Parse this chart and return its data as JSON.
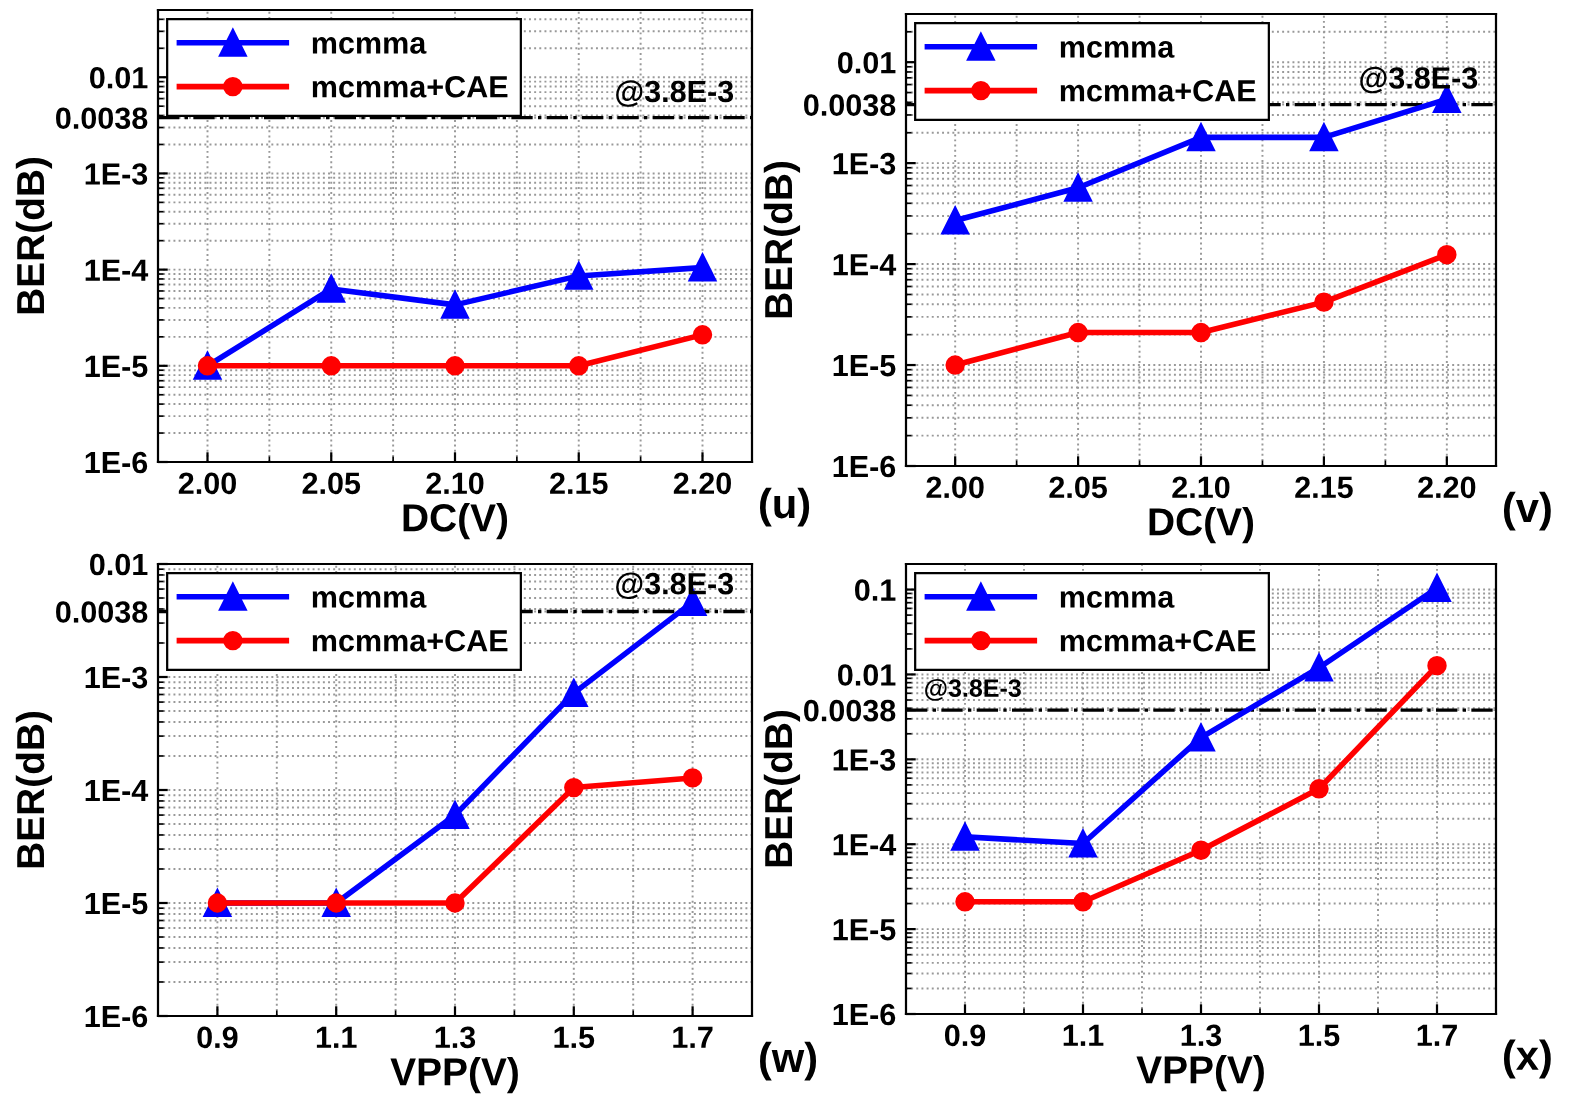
{
  "chart_data": [
    {
      "type": "line",
      "xlabel": "DC(V)",
      "ylabel": "BER(dB)",
      "x": [
        2.0,
        2.05,
        2.1,
        2.15,
        2.2
      ],
      "log": "y",
      "xlim": [
        1.98,
        2.22
      ],
      "xticks": [
        {
          "value": 2.0,
          "label": "2.00"
        },
        {
          "value": 2.05,
          "label": "2.05"
        },
        {
          "value": 2.1,
          "label": "2.10"
        },
        {
          "value": 2.15,
          "label": "2.15"
        },
        {
          "value": 2.2,
          "label": "2.20"
        }
      ],
      "ylim": [
        1e-06,
        0.05
      ],
      "yticks": [
        {
          "value": 1e-06,
          "label": "1E-6"
        },
        {
          "value": 1e-05,
          "label": "1E-5"
        },
        {
          "value": 0.0001,
          "label": "1E-4"
        },
        {
          "value": 0.001,
          "label": "1E-3"
        },
        0.0038,
        0.01
      ],
      "grid": true,
      "legend": "top left",
      "series": [
        {
          "name": "mcmma",
          "color": "#0000ff",
          "marker": "triangle",
          "values": [
            1e-05,
            6.3e-05,
            4.3e-05,
            8.6e-05,
            0.000105
          ]
        },
        {
          "name": "mcmma+CAE",
          "color": "#ff0000",
          "marker": "circle",
          "values": [
            1e-05,
            1e-05,
            1e-05,
            1e-05,
            2.1e-05
          ]
        }
      ],
      "ref_lines": [
        {
          "axis": "y",
          "value": 0.0038,
          "label": "@3.8E-3",
          "color": "#000000",
          "line_style": "dashdot"
        }
      ],
      "annotations": [
        "(u)"
      ]
    },
    {
      "type": "line",
      "xlabel": "DC(V)",
      "ylabel": "BER(dB)",
      "x": [
        2.0,
        2.05,
        2.1,
        2.15,
        2.2
      ],
      "log": "y",
      "xlim": [
        1.98,
        2.22
      ],
      "xticks": [
        {
          "value": 2.0,
          "label": "2.00"
        },
        {
          "value": 2.05,
          "label": "2.05"
        },
        {
          "value": 2.1,
          "label": "2.10"
        },
        {
          "value": 2.15,
          "label": "2.15"
        },
        {
          "value": 2.2,
          "label": "2.20"
        }
      ],
      "ylim": [
        1e-06,
        0.03
      ],
      "yticks": [
        {
          "value": 1e-06,
          "label": "1E-6"
        },
        {
          "value": 1e-05,
          "label": "1E-5"
        },
        {
          "value": 0.0001,
          "label": "1E-4"
        },
        {
          "value": 0.001,
          "label": "1E-3"
        },
        0.0038,
        0.01
      ],
      "grid": true,
      "legend": "top left",
      "series": [
        {
          "name": "mcmma",
          "color": "#0000ff",
          "marker": "triangle",
          "values": [
            0.00027,
            0.00057,
            0.0018,
            0.0018,
            0.0043
          ]
        },
        {
          "name": "mcmma+CAE",
          "color": "#ff0000",
          "marker": "circle",
          "values": [
            1e-05,
            2.1e-05,
            2.1e-05,
            4.2e-05,
            0.000124
          ]
        }
      ],
      "ref_lines": [
        {
          "axis": "y",
          "value": 0.0038,
          "label": "@3.8E-3",
          "color": "#000000",
          "line_style": "dashdot"
        }
      ],
      "annotations": [
        "(v)"
      ]
    },
    {
      "type": "line",
      "xlabel": "VPP(V)",
      "ylabel": "BER(dB)",
      "x": [
        0.9,
        1.1,
        1.3,
        1.5,
        1.7
      ],
      "log": "y",
      "xlim": [
        0.8,
        1.8
      ],
      "xticks": [
        0.9,
        1.1,
        1.3,
        1.5,
        1.7
      ],
      "ylim": [
        1e-06,
        0.01
      ],
      "yticks": [
        {
          "value": 1e-06,
          "label": "1E-6"
        },
        {
          "value": 1e-05,
          "label": "1E-5"
        },
        {
          "value": 0.0001,
          "label": "1E-4"
        },
        {
          "value": 0.001,
          "label": "1E-3"
        },
        0.0038,
        0.01
      ],
      "grid": true,
      "legend": "top left",
      "series": [
        {
          "name": "mcmma",
          "color": "#0000ff",
          "marker": "triangle",
          "values": [
            1e-05,
            1e-05,
            6e-05,
            0.00072,
            0.0046
          ]
        },
        {
          "name": "mcmma+CAE",
          "color": "#ff0000",
          "marker": "circle",
          "values": [
            1e-05,
            1e-05,
            1e-05,
            0.000105,
            0.000128
          ]
        }
      ],
      "ref_lines": [
        {
          "axis": "y",
          "value": 0.0038,
          "label": "@3.8E-3",
          "color": "#000000",
          "line_style": "dashdot"
        }
      ],
      "annotations": [
        "(w)"
      ]
    },
    {
      "type": "line",
      "xlabel": "VPP(V)",
      "ylabel": "BER(dB)",
      "x": [
        0.9,
        1.1,
        1.3,
        1.5,
        1.7
      ],
      "log": "y",
      "xlim": [
        0.8,
        1.8
      ],
      "xticks": [
        0.9,
        1.1,
        1.3,
        1.5,
        1.7
      ],
      "ylim": [
        1e-06,
        0.2
      ],
      "yticks": [
        {
          "value": 1e-06,
          "label": "1E-6"
        },
        {
          "value": 1e-05,
          "label": "1E-5"
        },
        {
          "value": 0.0001,
          "label": "1E-4"
        },
        {
          "value": 0.001,
          "label": "1E-3"
        },
        0.0038,
        0.01,
        0.1
      ],
      "grid": true,
      "legend": "top left",
      "series": [
        {
          "name": "mcmma",
          "color": "#0000ff",
          "marker": "triangle",
          "values": [
            0.000122,
            0.000102,
            0.0018,
            0.012,
            0.104
          ]
        },
        {
          "name": "mcmma+CAE",
          "color": "#ff0000",
          "marker": "circle",
          "values": [
            2.1e-05,
            2.1e-05,
            8.5e-05,
            0.00045,
            0.0127
          ]
        }
      ],
      "ref_lines": [
        {
          "axis": "y",
          "value": 0.0038,
          "label": "@3.8E-3",
          "color": "#000000",
          "line_style": "dashdot"
        }
      ],
      "annotations": [
        "(x)"
      ]
    }
  ]
}
